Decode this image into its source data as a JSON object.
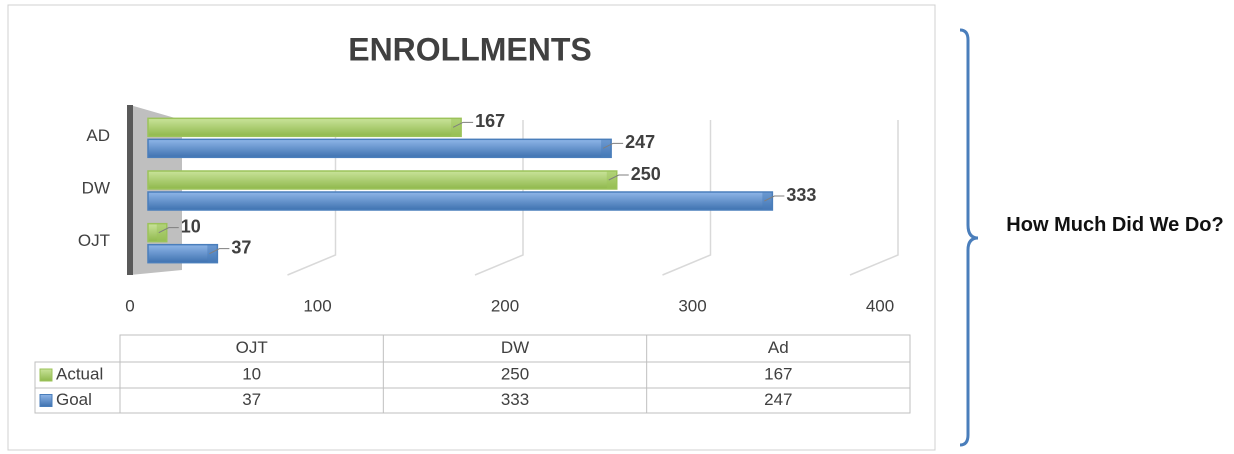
{
  "chart_data": {
    "type": "hbar",
    "title": "ENROLLMENTS",
    "categories": [
      "OJT",
      "DW",
      "AD"
    ],
    "series": [
      {
        "name": "Actual",
        "color": "#9cc35a",
        "values": [
          10,
          250,
          167
        ]
      },
      {
        "name": "Goal",
        "color": "#4a7ebb",
        "values": [
          37,
          333,
          247
        ]
      }
    ],
    "xlim": [
      0,
      400
    ],
    "xticks": [
      0,
      100,
      200,
      300,
      400
    ],
    "grid": true,
    "table_columns": [
      "OJT",
      "DW",
      "Ad"
    ]
  },
  "side_label": "How Much Did We Do?"
}
